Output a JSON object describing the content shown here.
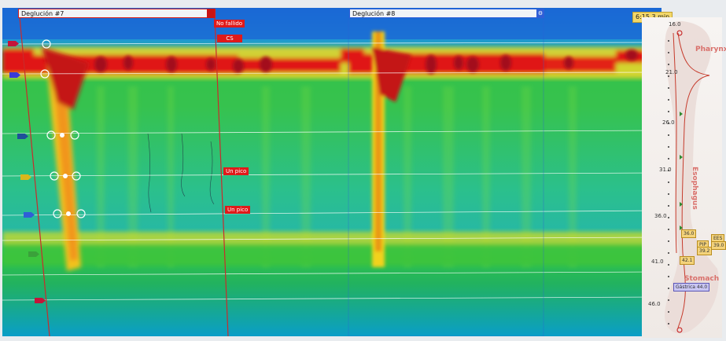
{
  "swallows": [
    {
      "label": "Deglución #7"
    },
    {
      "label": "Deglución #8"
    }
  ],
  "annotations": {
    "no_fallido": "No fallido",
    "cs": "CS",
    "un_pico_1": "Un pico",
    "un_pico_2": "Un pico"
  },
  "time_display": "6:15.3 min",
  "position_labels": [
    "16.0",
    "21.0",
    "26.0",
    "31.0",
    "36.0",
    "41.0",
    "46.0"
  ],
  "organs": {
    "pharynx": "Pharynx",
    "esophagus": "Esophagus",
    "stomach": "Stomach"
  },
  "marker_tags": {
    "les_a": "36.0",
    "les_b": "42.1",
    "pip": "PIP",
    "pip_value": "39.2",
    "ees": "EES",
    "ees_value": "39.0",
    "gastrica": "Gástrica 44.0"
  },
  "colors": {
    "high_pressure": "#d8101a",
    "mid_pressure": "#f2d21b",
    "low_pressure": "#22c24a",
    "baseline": "#0aa6c6",
    "sweep_line": "#c92b2b",
    "swallow8_border": "#2f5fd7",
    "annotation": "#e01a1a"
  }
}
